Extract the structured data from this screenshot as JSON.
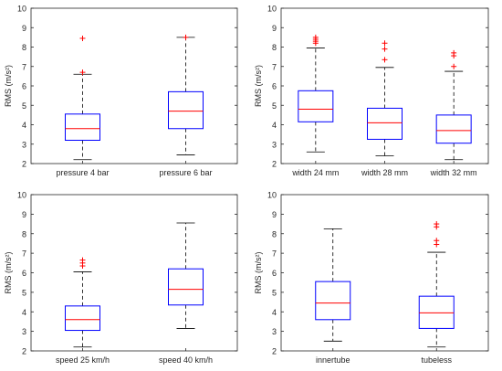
{
  "chart_data": [
    {
      "type": "box",
      "ylabel": "RMS (m/s²)",
      "ylim": [
        2,
        10
      ],
      "yticks": [
        "2",
        "3",
        "4",
        "5",
        "6",
        "7",
        "8",
        "9",
        "10"
      ],
      "categories": [
        "pressure 4 bar",
        "pressure 6 bar"
      ],
      "boxes": [
        {
          "min": 2.2,
          "q1": 3.2,
          "median": 3.8,
          "q3": 4.55,
          "max": 6.6,
          "outliers": [
            6.7,
            8.45
          ]
        },
        {
          "min": 2.45,
          "q1": 3.8,
          "median": 4.7,
          "q3": 5.7,
          "max": 8.5,
          "outliers": [
            8.5
          ]
        }
      ]
    },
    {
      "type": "box",
      "ylabel": "RMS (m/s²)",
      "ylim": [
        2,
        10
      ],
      "yticks": [
        "2",
        "3",
        "4",
        "5",
        "6",
        "7",
        "8",
        "9",
        "10"
      ],
      "categories": [
        "width 24 mm",
        "width 28 mm",
        "width 32 mm"
      ],
      "boxes": [
        {
          "min": 2.6,
          "q1": 4.15,
          "median": 4.8,
          "q3": 5.75,
          "max": 7.95,
          "outliers": [
            8.2,
            8.3,
            8.4,
            8.5
          ]
        },
        {
          "min": 2.4,
          "q1": 3.25,
          "median": 4.1,
          "q3": 4.85,
          "max": 6.95,
          "outliers": [
            7.35,
            7.9,
            8.2
          ]
        },
        {
          "min": 2.2,
          "q1": 3.05,
          "median": 3.7,
          "q3": 4.5,
          "max": 6.75,
          "outliers": [
            7.0,
            7.55,
            7.7
          ]
        }
      ]
    },
    {
      "type": "box",
      "ylabel": "RMS (m/s²)",
      "ylim": [
        2,
        10
      ],
      "yticks": [
        "2",
        "3",
        "4",
        "5",
        "6",
        "7",
        "8",
        "9",
        "10"
      ],
      "categories": [
        "speed 25 km/h",
        "speed 40 km/h"
      ],
      "boxes": [
        {
          "min": 2.2,
          "q1": 3.05,
          "median": 3.6,
          "q3": 4.3,
          "max": 6.05,
          "outliers": [
            6.35,
            6.5,
            6.65
          ]
        },
        {
          "min": 3.15,
          "q1": 4.35,
          "median": 5.15,
          "q3": 6.2,
          "max": 8.55,
          "outliers": []
        }
      ]
    },
    {
      "type": "box",
      "ylabel": "RMS (m/s²)",
      "ylim": [
        2,
        10
      ],
      "yticks": [
        "2",
        "3",
        "4",
        "5",
        "6",
        "7",
        "8",
        "9",
        "10"
      ],
      "categories": [
        "innertube",
        "tubeless"
      ],
      "boxes": [
        {
          "min": 2.5,
          "q1": 3.6,
          "median": 4.45,
          "q3": 5.55,
          "max": 8.25,
          "outliers": []
        },
        {
          "min": 2.2,
          "q1": 3.15,
          "median": 3.95,
          "q3": 4.8,
          "max": 7.05,
          "outliers": [
            7.45,
            7.65,
            8.35,
            8.5
          ]
        }
      ]
    }
  ],
  "colors": {
    "box": "#0000ff",
    "median": "#ff0000",
    "whisker": "#000000",
    "outlier": "#ff0000",
    "axis": "#262626"
  }
}
